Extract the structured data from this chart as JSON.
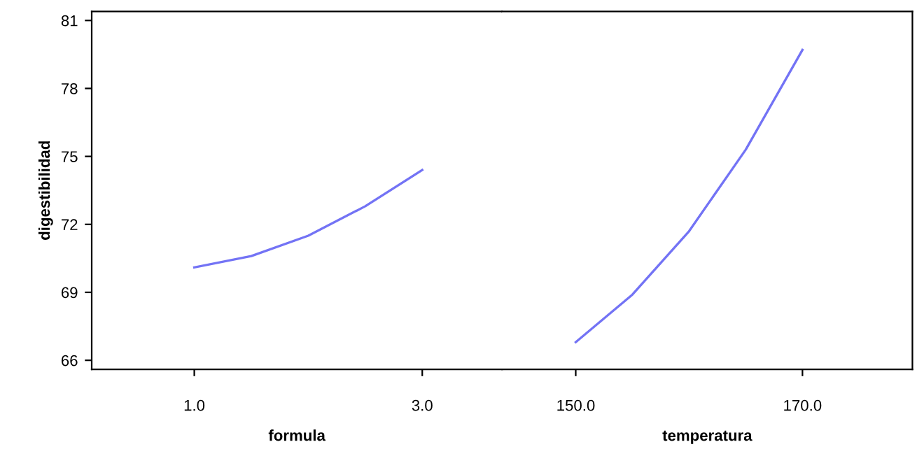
{
  "chart_data": [
    {
      "type": "line",
      "xlabel": "formula",
      "ylabel": "digestibilidad",
      "x": [
        1.0,
        1.5,
        2.0,
        2.5,
        3.0
      ],
      "series": [
        {
          "color": "#7373f5",
          "values": [
            70.1,
            70.6,
            71.5,
            72.8,
            74.4
          ]
        }
      ],
      "xlim": [
        0.1,
        3.7
      ],
      "xticks": [
        {
          "value": 1,
          "label": "1.0"
        },
        {
          "value": 3,
          "label": "3.0"
        }
      ],
      "ylim": [
        65.6,
        81.4
      ],
      "yticks": [
        66,
        69,
        72,
        75,
        78,
        81
      ],
      "grid": false
    },
    {
      "type": "line",
      "xlabel": "temperatura",
      "x": [
        150,
        155,
        160,
        165,
        170
      ],
      "series": [
        {
          "color": "#7373f5",
          "values": [
            66.8,
            68.9,
            71.7,
            75.3,
            79.7
          ]
        }
      ],
      "xlim": [
        143.5,
        179.7
      ],
      "xticks": [
        {
          "value": 150,
          "label": "150.0"
        },
        {
          "value": 170,
          "label": "170.0"
        }
      ],
      "ylim": [
        65.6,
        81.4
      ],
      "yticks": [
        66,
        69,
        72,
        75,
        78,
        81
      ],
      "tick_labels": "x",
      "grid": false
    }
  ]
}
